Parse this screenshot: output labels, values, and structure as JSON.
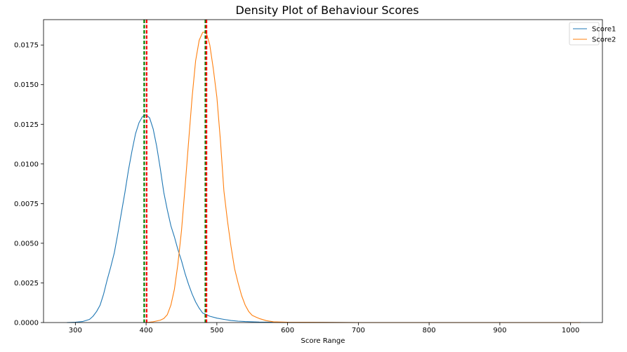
{
  "chart_data": {
    "type": "line",
    "title": "Density Plot of Behaviour Scores",
    "xlabel": "Score Range",
    "ylabel": "",
    "xlim": [
      255,
      1045
    ],
    "ylim": [
      0,
      0.0191
    ],
    "xticks": [
      300,
      400,
      500,
      600,
      700,
      800,
      900,
      1000
    ],
    "yticks": [
      0.0,
      0.0025,
      0.005,
      0.0075,
      0.01,
      0.0125,
      0.015,
      0.0175
    ],
    "ytick_labels": [
      "0.0000",
      "0.0025",
      "0.0050",
      "0.0075",
      "0.0100",
      "0.0125",
      "0.0150",
      "0.0175"
    ],
    "grid": false,
    "legend_position": "top-right",
    "series": [
      {
        "name": "Score1",
        "color": "#1f77b4",
        "x": [
          288,
          300,
          310,
          320,
          325,
          330,
          335,
          340,
          345,
          350,
          355,
          360,
          365,
          370,
          375,
          380,
          385,
          390,
          395,
          400,
          405,
          410,
          415,
          420,
          425,
          430,
          435,
          440,
          445,
          450,
          455,
          460,
          465,
          470,
          475,
          480,
          490,
          500,
          510,
          520,
          530,
          540,
          560,
          580,
          600,
          650,
          700,
          800,
          900,
          1014
        ],
        "y": [
          0.0,
          2e-05,
          6e-05,
          0.0002,
          0.0004,
          0.0007,
          0.0011,
          0.0018,
          0.0027,
          0.0035,
          0.0044,
          0.0056,
          0.0069,
          0.0082,
          0.0096,
          0.0108,
          0.0119,
          0.0126,
          0.013,
          0.0131,
          0.0129,
          0.0122,
          0.0111,
          0.0097,
          0.0082,
          0.0071,
          0.0061,
          0.0054,
          0.0046,
          0.0039,
          0.0031,
          0.0024,
          0.0018,
          0.0013,
          0.0009,
          0.0006,
          0.0004,
          0.00028,
          0.0002,
          0.00013,
          9e-05,
          6e-05,
          3e-05,
          2e-05,
          1e-05,
          1e-05,
          0.0,
          0.0,
          0.0,
          0.0
        ]
      },
      {
        "name": "Score2",
        "color": "#ff7f0e",
        "x": [
          400,
          410,
          420,
          425,
          430,
          435,
          440,
          445,
          450,
          455,
          460,
          465,
          470,
          475,
          480,
          485,
          490,
          495,
          500,
          505,
          510,
          515,
          520,
          525,
          530,
          535,
          540,
          545,
          550,
          555,
          560,
          570,
          580,
          600,
          650,
          700,
          800,
          1014
        ],
        "y": [
          0.0,
          5e-05,
          0.00015,
          0.00025,
          0.0005,
          0.0011,
          0.0021,
          0.0037,
          0.0058,
          0.0085,
          0.0114,
          0.0142,
          0.0165,
          0.0178,
          0.0183,
          0.0183,
          0.0175,
          0.016,
          0.0142,
          0.0115,
          0.0083,
          0.0064,
          0.0048,
          0.0034,
          0.0025,
          0.0017,
          0.0011,
          0.0007,
          0.00045,
          0.00035,
          0.00025,
          0.00012,
          5e-05,
          2e-05,
          1e-05,
          0.0,
          0.0,
          0.0
        ]
      }
    ],
    "vlines": [
      {
        "x": 397.3,
        "color": "#008000",
        "style": "dashed"
      },
      {
        "x": 400.7,
        "color": "#ff0000",
        "style": "dashed"
      },
      {
        "x": 483.8,
        "color": "#008000",
        "style": "dashed"
      },
      {
        "x": 485.3,
        "color": "#ff0000",
        "style": "dashed"
      }
    ]
  }
}
